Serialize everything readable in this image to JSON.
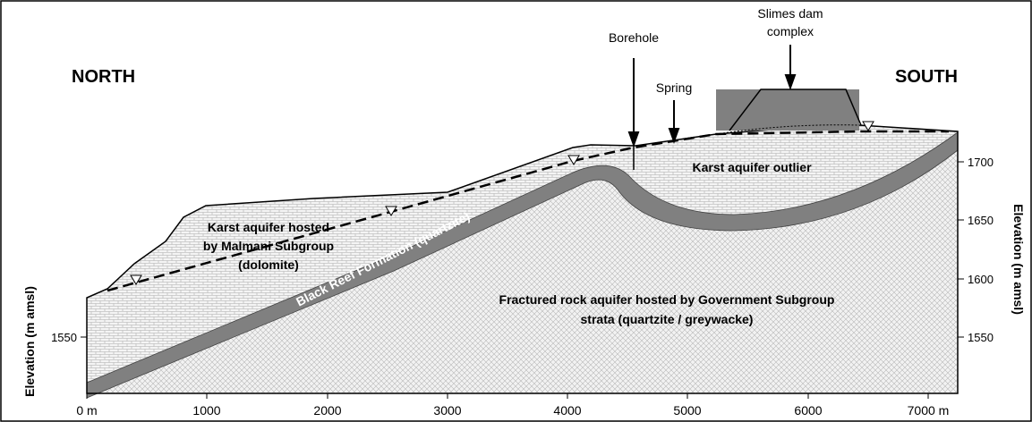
{
  "header": {
    "north": "NORTH",
    "south": "SOUTH"
  },
  "callouts": {
    "slimes_dam": [
      "Slimes dam",
      "complex"
    ],
    "borehole": "Borehole",
    "spring": "Spring"
  },
  "units": {
    "karst_outlier": "Karst aquifer outlier",
    "karst_north": [
      "Karst aquifer hosted",
      "by Malmani Subgroup",
      "(dolomite)"
    ],
    "black_reef": "Black Reef Formation (quartzite)",
    "fractured": [
      "Fractured rock aquifer hosted by Government Subgroup",
      "strata (quartzite / greywacke)"
    ]
  },
  "x_axis": {
    "ticks": [
      "0 m",
      "1000",
      "2000",
      "3000",
      "4000",
      "5000",
      "6000",
      "7000 m"
    ]
  },
  "left_axis": {
    "title": "Elevation (m amsl)",
    "ticks": [
      "1550"
    ]
  },
  "right_axis": {
    "title": "Elevation (m amsl)",
    "ticks": [
      "1550",
      "1600",
      "1650",
      "1700"
    ]
  }
}
